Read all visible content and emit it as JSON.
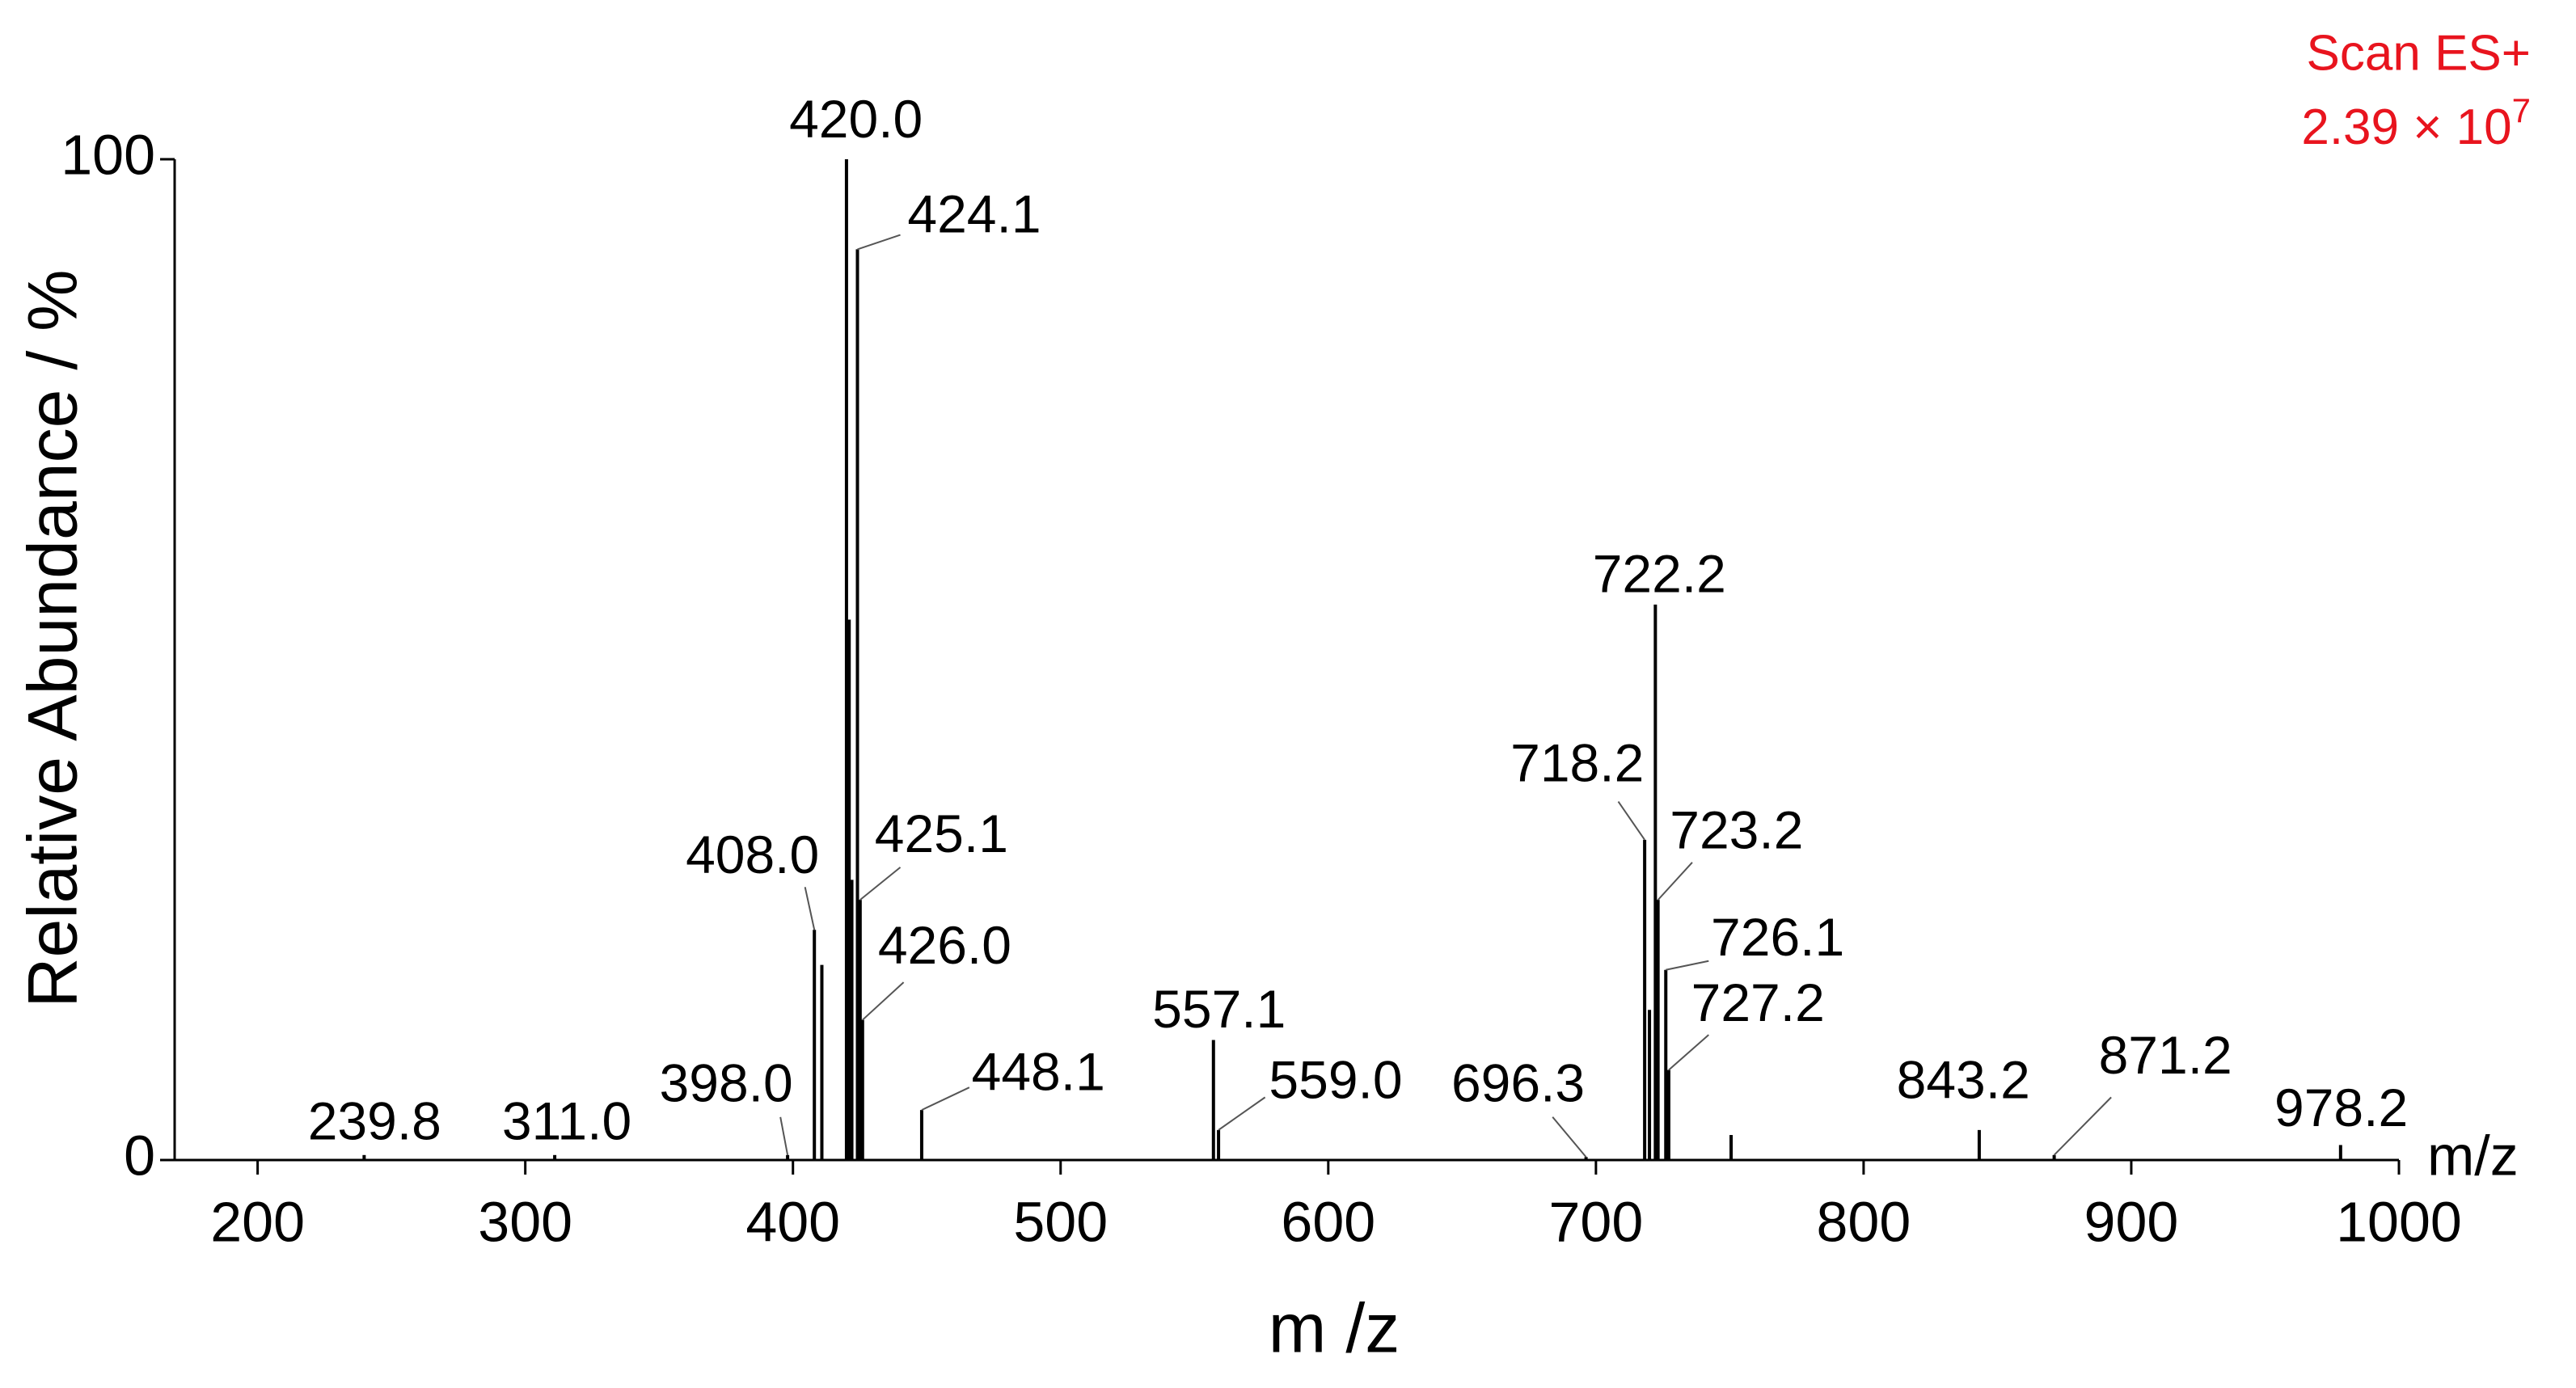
{
  "chart_data": {
    "type": "stem",
    "x_axis_label": "m /z",
    "axis_end_label": "m/z",
    "y_axis_label": "Relative Abundance / %",
    "annotation": {
      "scan": "Scan ES+",
      "intensity": "2.39 × 10",
      "exponent": "7"
    },
    "x": [
      239.8,
      311.0,
      398.0,
      408.0,
      410.8,
      420.0,
      421.0,
      422.0,
      424.1,
      425.1,
      426.0,
      448.1,
      557.1,
      559.0,
      696.3,
      718.2,
      720.0,
      722.2,
      723.2,
      726.1,
      727.2,
      750.5,
      843.2,
      871.2,
      978.2
    ],
    "x_labels": [
      "239.8",
      "311.0",
      "398.0",
      "408.0",
      null,
      "420.0",
      null,
      null,
      "424.1",
      "425.1",
      "426.0",
      "448.1",
      "557.1",
      "559.0",
      "696.3",
      "718.2",
      null,
      "722.2",
      "723.2",
      "726.1",
      "727.2",
      null,
      "843.2",
      "871.2",
      "978.2"
    ],
    "values": [
      0.5,
      0.5,
      0.5,
      23,
      19.5,
      100,
      54,
      28,
      91,
      26,
      14,
      5,
      12,
      3,
      0.3,
      32,
      15,
      55.5,
      26,
      19,
      9,
      2.5,
      3,
      0.5,
      1.5
    ],
    "color": "#000000",
    "xlim": [
      169,
      1000
    ],
    "xticks": [
      200,
      300,
      400,
      500,
      600,
      700,
      800,
      900,
      1000
    ],
    "ylim": [
      0,
      100
    ],
    "yticks": [
      0,
      100
    ]
  }
}
